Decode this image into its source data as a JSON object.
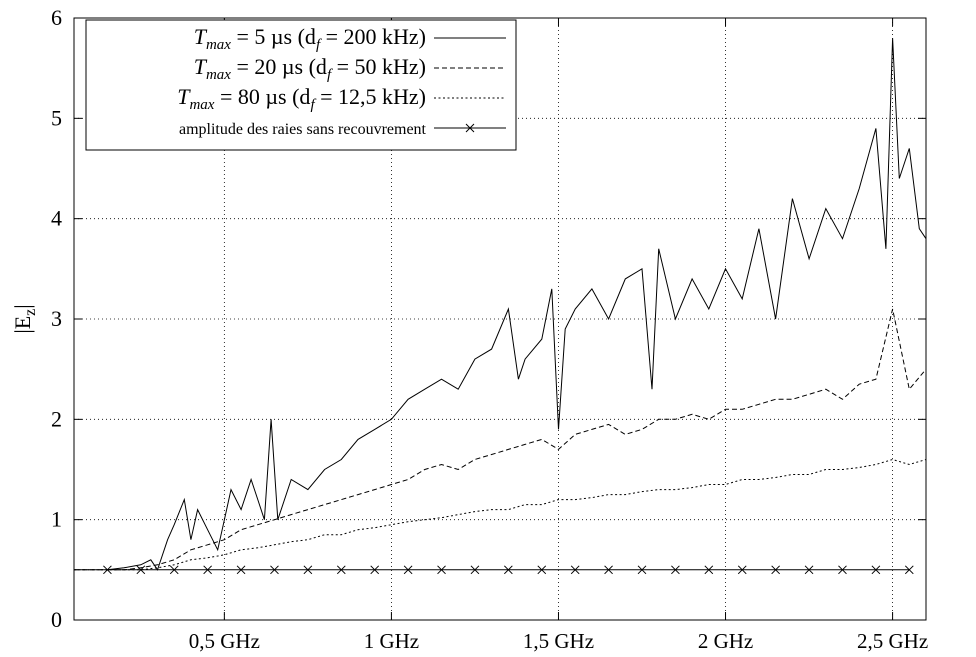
{
  "chart_data": {
    "type": "line",
    "title": "",
    "xlabel": "",
    "ylabel": "|E_z|",
    "xlim": [
      0.05,
      2.6
    ],
    "ylim": [
      0,
      6
    ],
    "grid": true,
    "legend_position": "top-left",
    "x_ticks": [
      {
        "value": 0.5,
        "label": "0,5 GHz"
      },
      {
        "value": 1.0,
        "label": "1 GHz"
      },
      {
        "value": 1.5,
        "label": "1,5 GHz"
      },
      {
        "value": 2.0,
        "label": "2 GHz"
      },
      {
        "value": 2.5,
        "label": "2,5 GHz"
      }
    ],
    "y_ticks": [
      0,
      1,
      2,
      3,
      4,
      5,
      6
    ],
    "series": [
      {
        "name_parts": [
          "T",
          "max",
          " = 5 µs (d",
          "f",
          " = 200 kHz)"
        ],
        "style": "solid",
        "x": [
          0.05,
          0.1,
          0.15,
          0.2,
          0.25,
          0.28,
          0.3,
          0.33,
          0.35,
          0.38,
          0.4,
          0.42,
          0.45,
          0.48,
          0.5,
          0.52,
          0.55,
          0.58,
          0.6,
          0.62,
          0.64,
          0.66,
          0.7,
          0.75,
          0.8,
          0.85,
          0.9,
          0.95,
          1.0,
          1.05,
          1.1,
          1.15,
          1.2,
          1.25,
          1.3,
          1.35,
          1.38,
          1.4,
          1.45,
          1.48,
          1.5,
          1.52,
          1.55,
          1.6,
          1.65,
          1.7,
          1.75,
          1.78,
          1.8,
          1.85,
          1.9,
          1.95,
          2.0,
          2.05,
          2.1,
          2.15,
          2.2,
          2.25,
          2.3,
          2.35,
          2.4,
          2.45,
          2.48,
          2.5,
          2.52,
          2.55,
          2.58,
          2.6
        ],
        "y": [
          0.5,
          0.5,
          0.5,
          0.52,
          0.55,
          0.6,
          0.5,
          0.8,
          0.95,
          1.2,
          0.8,
          1.1,
          0.9,
          0.7,
          1.0,
          1.3,
          1.1,
          1.4,
          1.2,
          1.0,
          2.0,
          1.0,
          1.4,
          1.3,
          1.5,
          1.6,
          1.8,
          1.9,
          2.0,
          2.2,
          2.3,
          2.4,
          2.3,
          2.6,
          2.7,
          3.1,
          2.4,
          2.6,
          2.8,
          3.3,
          1.9,
          2.9,
          3.1,
          3.3,
          3.0,
          3.4,
          3.5,
          2.3,
          3.7,
          3.0,
          3.4,
          3.1,
          3.5,
          3.2,
          3.9,
          3.0,
          4.2,
          3.6,
          4.1,
          3.8,
          4.3,
          4.9,
          3.7,
          5.8,
          4.4,
          4.7,
          3.9,
          3.8
        ]
      },
      {
        "name_parts": [
          "T",
          "max",
          " = 20 µs (d",
          "f",
          " = 50 kHz)"
        ],
        "style": "dashed",
        "x": [
          0.05,
          0.1,
          0.15,
          0.2,
          0.25,
          0.3,
          0.35,
          0.4,
          0.45,
          0.5,
          0.55,
          0.6,
          0.65,
          0.7,
          0.75,
          0.8,
          0.85,
          0.9,
          0.95,
          1.0,
          1.05,
          1.1,
          1.15,
          1.2,
          1.25,
          1.3,
          1.35,
          1.4,
          1.45,
          1.5,
          1.55,
          1.6,
          1.65,
          1.7,
          1.75,
          1.8,
          1.85,
          1.9,
          1.95,
          2.0,
          2.05,
          2.1,
          2.15,
          2.2,
          2.25,
          2.3,
          2.35,
          2.4,
          2.45,
          2.5,
          2.55,
          2.6
        ],
        "y": [
          0.5,
          0.5,
          0.5,
          0.5,
          0.52,
          0.55,
          0.6,
          0.7,
          0.75,
          0.8,
          0.9,
          0.95,
          1.0,
          1.05,
          1.1,
          1.15,
          1.2,
          1.25,
          1.3,
          1.35,
          1.4,
          1.5,
          1.55,
          1.5,
          1.6,
          1.65,
          1.7,
          1.75,
          1.8,
          1.7,
          1.85,
          1.9,
          1.95,
          1.85,
          1.9,
          2.0,
          2.0,
          2.05,
          2.0,
          2.1,
          2.1,
          2.15,
          2.2,
          2.2,
          2.25,
          2.3,
          2.2,
          2.35,
          2.4,
          3.1,
          2.3,
          2.5
        ]
      },
      {
        "name_parts": [
          "T",
          "max",
          " = 80 µs (d",
          "f",
          " = 12,5 kHz)"
        ],
        "style": "dotted",
        "x": [
          0.05,
          0.1,
          0.15,
          0.2,
          0.25,
          0.3,
          0.35,
          0.4,
          0.45,
          0.5,
          0.55,
          0.6,
          0.65,
          0.7,
          0.75,
          0.8,
          0.85,
          0.9,
          0.95,
          1.0,
          1.05,
          1.1,
          1.15,
          1.2,
          1.25,
          1.3,
          1.35,
          1.4,
          1.45,
          1.5,
          1.55,
          1.6,
          1.65,
          1.7,
          1.75,
          1.8,
          1.85,
          1.9,
          1.95,
          2.0,
          2.05,
          2.1,
          2.15,
          2.2,
          2.25,
          2.3,
          2.35,
          2.4,
          2.45,
          2.5,
          2.55,
          2.6
        ],
        "y": [
          0.5,
          0.5,
          0.5,
          0.5,
          0.5,
          0.52,
          0.55,
          0.6,
          0.62,
          0.65,
          0.7,
          0.72,
          0.75,
          0.78,
          0.8,
          0.85,
          0.85,
          0.9,
          0.92,
          0.95,
          0.98,
          1.0,
          1.02,
          1.05,
          1.08,
          1.1,
          1.1,
          1.15,
          1.15,
          1.2,
          1.2,
          1.22,
          1.25,
          1.25,
          1.28,
          1.3,
          1.3,
          1.32,
          1.35,
          1.35,
          1.4,
          1.4,
          1.42,
          1.45,
          1.45,
          1.5,
          1.5,
          1.52,
          1.55,
          1.6,
          1.55,
          1.6
        ]
      },
      {
        "name_parts": [
          "amplitude des raies sans recouvrement"
        ],
        "style": "solid-x-markers",
        "x": [
          0.15,
          0.25,
          0.35,
          0.45,
          0.55,
          0.65,
          0.75,
          0.85,
          0.95,
          1.05,
          1.15,
          1.25,
          1.35,
          1.45,
          1.55,
          1.65,
          1.75,
          1.85,
          1.95,
          2.05,
          2.15,
          2.25,
          2.35,
          2.45,
          2.55
        ],
        "y": [
          0.5,
          0.5,
          0.5,
          0.5,
          0.5,
          0.5,
          0.5,
          0.5,
          0.5,
          0.5,
          0.5,
          0.5,
          0.5,
          0.5,
          0.5,
          0.5,
          0.5,
          0.5,
          0.5,
          0.5,
          0.5,
          0.5,
          0.5,
          0.5,
          0.5
        ]
      }
    ]
  }
}
